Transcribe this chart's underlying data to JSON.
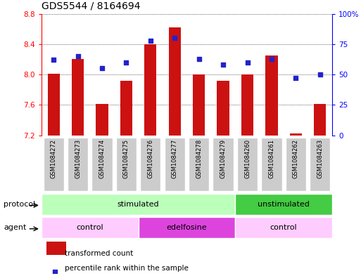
{
  "title": "GDS5544 / 8164694",
  "samples": [
    "GSM1084272",
    "GSM1084273",
    "GSM1084274",
    "GSM1084275",
    "GSM1084276",
    "GSM1084277",
    "GSM1084278",
    "GSM1084279",
    "GSM1084260",
    "GSM1084261",
    "GSM1084262",
    "GSM1084263"
  ],
  "bar_values": [
    8.01,
    8.2,
    7.61,
    7.92,
    8.4,
    8.62,
    8.0,
    7.92,
    8.0,
    8.25,
    7.22,
    7.61
  ],
  "dot_values": [
    62,
    65,
    55,
    60,
    78,
    80,
    63,
    58,
    60,
    63,
    47,
    50
  ],
  "ymin": 7.2,
  "ymax": 8.8,
  "yticks": [
    7.2,
    7.6,
    8.0,
    8.4,
    8.8
  ],
  "y2min": 0,
  "y2max": 100,
  "y2ticks": [
    0,
    25,
    50,
    75,
    100
  ],
  "y2ticklabels": [
    "0",
    "25",
    "50",
    "75",
    "100%"
  ],
  "bar_color": "#cc1111",
  "dot_color": "#2222cc",
  "bg_color": "#ffffff",
  "protocol_groups": [
    {
      "label": "stimulated",
      "start": 0,
      "end": 8,
      "color": "#bbffbb"
    },
    {
      "label": "unstimulated",
      "start": 8,
      "end": 12,
      "color": "#44cc44"
    }
  ],
  "agent_groups": [
    {
      "label": "control",
      "start": 0,
      "end": 4,
      "color": "#ffccff"
    },
    {
      "label": "edelfosine",
      "start": 4,
      "end": 8,
      "color": "#dd44dd"
    },
    {
      "label": "control",
      "start": 8,
      "end": 12,
      "color": "#ffccff"
    }
  ],
  "legend_bar_label": "transformed count",
  "legend_dot_label": "percentile rank within the sample",
  "xlabel_protocol": "protocol",
  "xlabel_agent": "agent",
  "title_fontsize": 10,
  "tick_fontsize": 7.5,
  "label_fontsize": 8,
  "sample_bg_color": "#cccccc"
}
